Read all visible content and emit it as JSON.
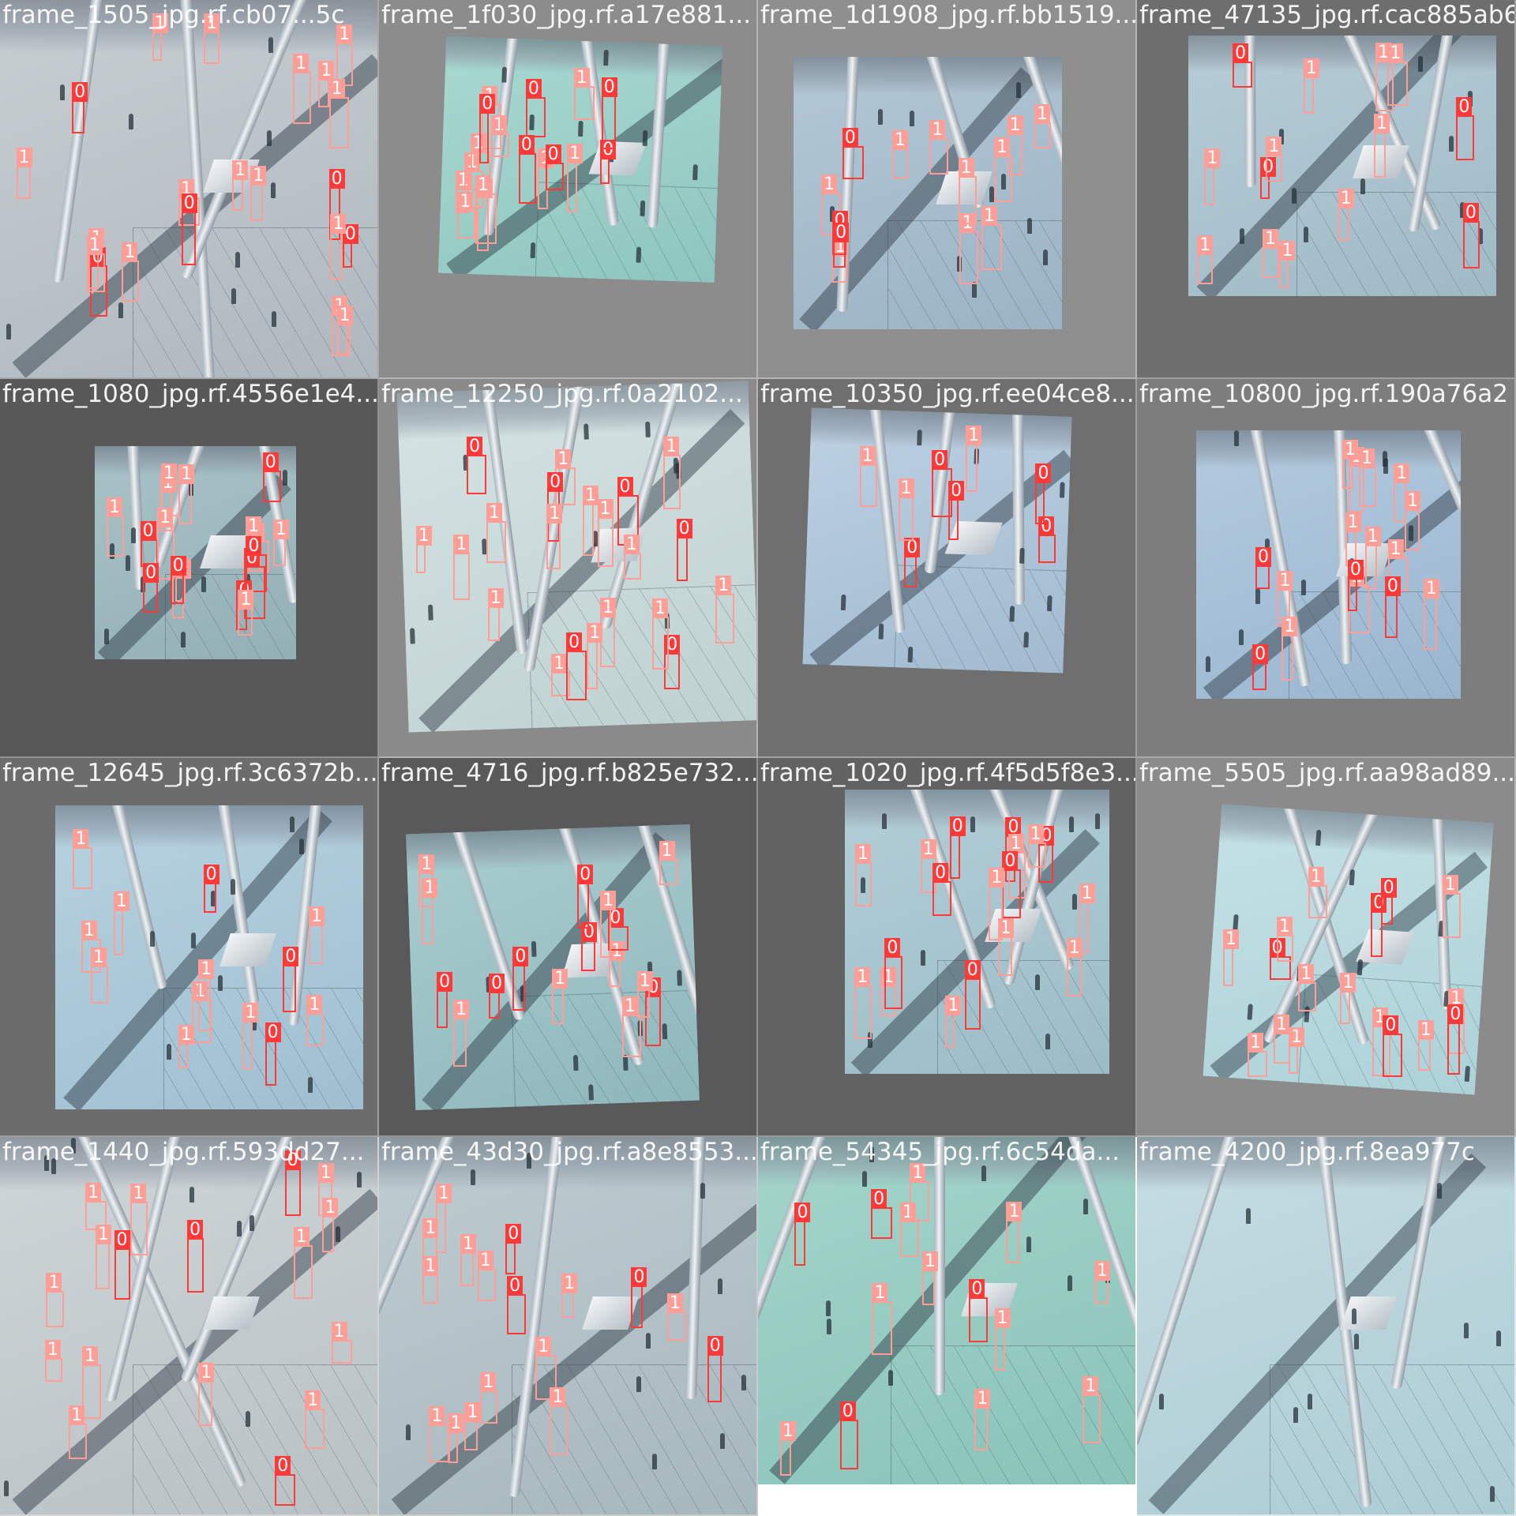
{
  "mosaic": {
    "tiles": [
      {
        "title": "frame_1505_jpg.rf.cb07...5c",
        "backdrop": "#7a7a7a",
        "floor": "#c8cfd3",
        "accent": "#aeb8be",
        "labels": [
          "1",
          "1",
          "0",
          "1",
          "1",
          "0",
          "1",
          "1",
          "1",
          "1",
          "0",
          "0",
          "1",
          "1",
          "1",
          "1",
          "0",
          "1",
          "1",
          "1",
          "1"
        ]
      },
      {
        "title": "frame_1f030_jpg.rf.a17e881...",
        "backdrop": "#8c8c8c",
        "floor": "#a9d9d1",
        "accent": "#8ec6bf",
        "labels": [
          "1",
          "1",
          "1",
          "1",
          "0",
          "1",
          "1",
          "1",
          "1",
          "0",
          "0",
          "0",
          "1",
          "0",
          "1",
          "0",
          "1"
        ]
      },
      {
        "title": "frame_1d1908_jpg.rf.bb1519...",
        "backdrop": "#8f8f8f",
        "floor": "#b4c8d6",
        "accent": "#9bb3c4",
        "labels": [
          "1",
          "1",
          "1",
          "1",
          "1",
          "1",
          "0",
          "0",
          "1",
          "1",
          "0",
          "1",
          "1"
        ]
      },
      {
        "title": "frame_47135_jpg.rf.cac885ab6",
        "backdrop": "#6e6e6e",
        "floor": "#b7cdd7",
        "accent": "#9fbac6",
        "labels": [
          "1",
          "1",
          "1",
          "1",
          "0",
          "1",
          "1",
          "0",
          "1",
          "1",
          "0",
          "1",
          "1",
          "0"
        ]
      },
      {
        "title": "frame_1080_jpg.rf.4556e1e4...",
        "backdrop": "#585858",
        "floor": "#a9c3c8",
        "accent": "#93b0b6",
        "labels": [
          "1",
          "1",
          "1",
          "1",
          "1",
          "0",
          "1",
          "1",
          "1",
          "0",
          "0",
          "0",
          "1",
          "0",
          "0",
          "1",
          "0",
          "1"
        ]
      },
      {
        "title": "frame_12250_jpg.rf.0a2102...",
        "backdrop": "#8a8a8a",
        "floor": "#d5e3e3",
        "accent": "#bfd1d1",
        "labels": [
          "1",
          "0",
          "1",
          "1",
          "1",
          "0",
          "1",
          "0",
          "1",
          "1",
          "1",
          "1",
          "1",
          "0",
          "1",
          "0",
          "1",
          "1",
          "1",
          "0",
          "1"
        ]
      },
      {
        "title": "frame_10350_jpg.rf.ee04ce8...",
        "backdrop": "#6f6f6f",
        "floor": "#bdd1e2",
        "accent": "#a2bbd0",
        "labels": [
          "1",
          "0",
          "0",
          "0",
          "0",
          "1",
          "1",
          "0"
        ]
      },
      {
        "title": "frame_10800_jpg.rf.190a76a2",
        "backdrop": "#7d7d7d",
        "floor": "#b3cbe0",
        "accent": "#9ab6cf",
        "labels": [
          "1",
          "1",
          "1",
          "1",
          "0",
          "1",
          "0",
          "1",
          "1",
          "1",
          "0",
          "1",
          "1",
          "1",
          "1",
          "0"
        ]
      },
      {
        "title": "frame_12645_jpg.rf.3c6372b...",
        "backdrop": "#6c6c6c",
        "floor": "#b7d2e0",
        "accent": "#9fbfd0",
        "labels": [
          "1",
          "1",
          "0",
          "1",
          "1",
          "0",
          "1",
          "0",
          "1",
          "1",
          "1",
          "1",
          "1"
        ]
      },
      {
        "title": "frame_4716_jpg.rf.b825e732...",
        "backdrop": "#595959",
        "floor": "#a9cdd0",
        "accent": "#8fb8bc",
        "labels": [
          "1",
          "1",
          "0",
          "1",
          "1",
          "0",
          "1",
          "1",
          "0",
          "0",
          "1",
          "0",
          "0",
          "1",
          "0",
          "1"
        ]
      },
      {
        "title": "frame_1020_jpg.rf.4f5d5f8e3...",
        "backdrop": "#626262",
        "floor": "#b3cfd8",
        "accent": "#9bbcc6",
        "labels": [
          "1",
          "1",
          "1",
          "1",
          "1",
          "0",
          "1",
          "1",
          "0",
          "0",
          "1",
          "0",
          "0",
          "1",
          "0",
          "1",
          "0",
          "1"
        ]
      },
      {
        "title": "frame_5505_jpg.rf.aa98ad89...",
        "backdrop": "#8b8b8b",
        "floor": "#c5e2e6",
        "accent": "#acd2d8",
        "labels": [
          "1",
          "0",
          "1",
          "1",
          "1",
          "0",
          "1",
          "1",
          "1",
          "0",
          "1",
          "1",
          "0",
          "1",
          "0",
          "1",
          "1"
        ]
      },
      {
        "title": "frame_1440_jpg.rf.593dd27...",
        "backdrop": "#bcbcbc",
        "floor": "#cfd6d8",
        "accent": "#b8c1c4",
        "labels": [
          "1",
          "1",
          "1",
          "1",
          "1",
          "0",
          "1",
          "1",
          "0",
          "1",
          "0",
          "1",
          "1",
          "0",
          "1",
          "1",
          "1"
        ]
      },
      {
        "title": "frame_43d30_jpg.rf.a8e8553...",
        "backdrop": "#a9b0b3",
        "floor": "#bfcdd2",
        "accent": "#a6b7bd",
        "labels": [
          "1",
          "1",
          "0",
          "1",
          "1",
          "0",
          "1",
          "1",
          "1",
          "1",
          "1",
          "1",
          "0",
          "1",
          "1",
          "0",
          "1"
        ]
      },
      {
        "title": "frame_54345_jpg.rf.6c54da...",
        "backdrop": "#ffffff",
        "floor": "#a4d5cb",
        "accent": "#8ac3b8",
        "labels": [
          "1",
          "1",
          "1",
          "1",
          "0",
          "1",
          "0",
          "0",
          "1",
          "1",
          "1",
          "1",
          "0",
          "1"
        ]
      },
      {
        "title": "frame_4200_jpg.rf.8ea977c",
        "backdrop": "#c9dde2",
        "floor": "#c6dde3",
        "accent": "#acccd4",
        "labels": []
      }
    ]
  },
  "classes": {
    "0": {
      "label": "0",
      "color": "#ff3838",
      "box_color": "#ff3838"
    },
    "1": {
      "label": "1",
      "color": "#ff9d97",
      "box_color": "#ff9d97"
    }
  }
}
